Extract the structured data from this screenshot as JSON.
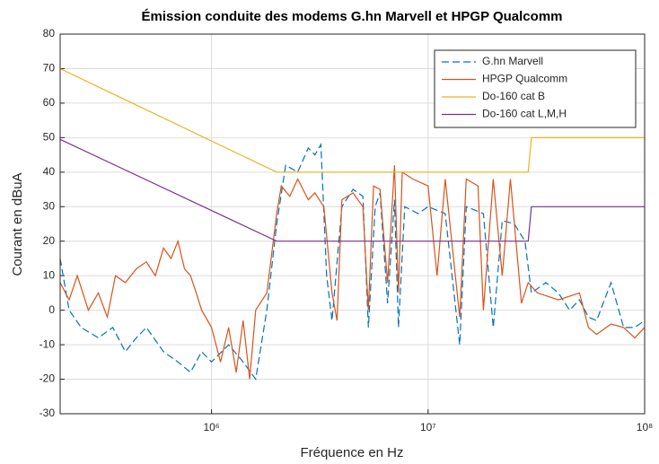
{
  "chart_data": {
    "type": "line",
    "title": "Émission conduite des modems G.hn Marvell et HPGP Qualcomm",
    "xlabel": "Fréquence en Hz",
    "ylabel": "Courant en dBuA",
    "xscale": "log",
    "xlim": [
      200000,
      100000000
    ],
    "xticks": [
      {
        "value": 1000000,
        "label": "10⁶"
      },
      {
        "value": 10000000,
        "label": "10⁷"
      },
      {
        "value": 100000000,
        "label": "10⁸"
      }
    ],
    "ylim": [
      -30,
      80
    ],
    "yticks": [
      -30,
      -20,
      -10,
      0,
      10,
      20,
      30,
      40,
      50,
      60,
      70,
      80
    ],
    "grid": true,
    "legend": "upper right",
    "series": [
      {
        "name": "G.hn Marvell",
        "color": "#0072bd",
        "style": "dashed",
        "x": [
          200000,
          220000,
          250000,
          300000,
          350000,
          400000,
          450000,
          500000,
          600000,
          700000,
          800000,
          900000,
          1000000,
          1200000,
          1400000,
          1600000,
          1800000,
          2000000,
          2200000,
          2500000,
          2800000,
          3000000,
          3200000,
          3400000,
          3600000,
          4000000,
          4500000,
          5000000,
          5300000,
          5700000,
          6000000,
          6500000,
          7000000,
          7300000,
          7800000,
          9000000,
          10000000,
          12000000,
          14000000,
          15000000,
          18000000,
          20000000,
          22000000,
          25000000,
          28000000,
          30000000,
          35000000,
          40000000,
          45000000,
          50000000,
          55000000,
          60000000,
          70000000,
          80000000,
          90000000,
          100000000
        ],
        "values": [
          15,
          0,
          -5,
          -8,
          -5,
          -12,
          -8,
          -5,
          -12,
          -15,
          -18,
          -12,
          -15,
          -10,
          -15,
          -20,
          0,
          25,
          42,
          40,
          47,
          45,
          48,
          10,
          -3,
          30,
          35,
          33,
          -5,
          30,
          34,
          2,
          32,
          -5,
          30,
          28,
          30,
          28,
          -10,
          30,
          28,
          -5,
          26,
          25,
          20,
          5,
          8,
          5,
          0,
          3,
          -2,
          -3,
          8,
          -5,
          -5,
          -3
        ]
      },
      {
        "name": "HPGP Qualcomm",
        "color": "#d95319",
        "style": "solid",
        "x": [
          200000,
          220000,
          240000,
          270000,
          300000,
          330000,
          360000,
          400000,
          450000,
          500000,
          550000,
          600000,
          650000,
          700000,
          750000,
          800000,
          850000,
          900000,
          1000000,
          1100000,
          1200000,
          1300000,
          1400000,
          1500000,
          1600000,
          1800000,
          2000000,
          2100000,
          2300000,
          2500000,
          2800000,
          3000000,
          3300000,
          3600000,
          3800000,
          4000000,
          4500000,
          5000000,
          5300000,
          5600000,
          6000000,
          6500000,
          7000000,
          7300000,
          7600000,
          8500000,
          10000000,
          11000000,
          12000000,
          14000000,
          15000000,
          17000000,
          18000000,
          20000000,
          22000000,
          24000000,
          27000000,
          29000000,
          32000000,
          40000000,
          50000000,
          55000000,
          60000000,
          70000000,
          80000000,
          90000000,
          100000000
        ],
        "values": [
          8,
          3,
          10,
          0,
          5,
          -2,
          10,
          8,
          12,
          14,
          10,
          18,
          15,
          20,
          12,
          10,
          5,
          0,
          -5,
          -15,
          -5,
          -18,
          -3,
          -20,
          0,
          5,
          28,
          36,
          33,
          38,
          32,
          34,
          30,
          5,
          -3,
          32,
          34,
          30,
          0,
          36,
          35,
          8,
          42,
          5,
          40,
          38,
          36,
          10,
          38,
          -2,
          38,
          36,
          0,
          38,
          10,
          38,
          2,
          8,
          5,
          3,
          5,
          -5,
          -7,
          -4,
          -5,
          -8,
          -5
        ]
      },
      {
        "name": "Do-160 cat B",
        "color": "#edb120",
        "style": "solid",
        "x": [
          200000,
          2000000,
          29000000,
          30000000,
          100000000
        ],
        "values": [
          70,
          40,
          40,
          50,
          50
        ]
      },
      {
        "name": "Do-160 cat L,M,H",
        "color": "#7e2f8e",
        "style": "solid",
        "x": [
          200000,
          2000000,
          29000000,
          30000000,
          100000000
        ],
        "values": [
          49.5,
          20,
          20,
          30,
          30
        ]
      }
    ]
  }
}
